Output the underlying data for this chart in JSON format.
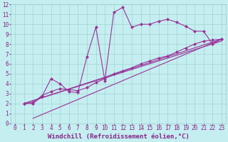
{
  "background_color": "#c5eef0",
  "grid_color": "#99cccc",
  "line_color": "#993399",
  "xlim": [
    -0.5,
    23.5
  ],
  "ylim": [
    0,
    12
  ],
  "xticks": [
    0,
    1,
    2,
    3,
    4,
    5,
    6,
    7,
    8,
    9,
    10,
    11,
    12,
    13,
    14,
    15,
    16,
    17,
    18,
    19,
    20,
    21,
    22,
    23
  ],
  "yticks": [
    0,
    1,
    2,
    3,
    4,
    5,
    6,
    7,
    8,
    9,
    10,
    11,
    12
  ],
  "line1_x": [
    1,
    2,
    3,
    4,
    5,
    6,
    7,
    8,
    9,
    10,
    11,
    12,
    13,
    14,
    15,
    16,
    17,
    18,
    19,
    20,
    21,
    22,
    23
  ],
  "line1_y": [
    2.0,
    2.0,
    2.7,
    4.5,
    4.0,
    3.2,
    3.1,
    6.7,
    9.7,
    4.3,
    11.2,
    11.7,
    9.7,
    10.0,
    10.0,
    10.3,
    10.5,
    10.2,
    9.8,
    9.3,
    9.3,
    8.0,
    8.5
  ],
  "line2_x": [
    1,
    2,
    3,
    4,
    5,
    6,
    7,
    8,
    9,
    10,
    11,
    12,
    13,
    14,
    15,
    16,
    17,
    18,
    19,
    20,
    21,
    22,
    23
  ],
  "line2_y": [
    2.0,
    2.1,
    2.8,
    3.2,
    3.5,
    3.4,
    3.3,
    3.6,
    4.1,
    4.5,
    5.0,
    5.3,
    5.6,
    6.0,
    6.3,
    6.6,
    6.8,
    7.2,
    7.6,
    8.0,
    8.3,
    8.4,
    8.5
  ],
  "line3_x": [
    1,
    23
  ],
  "line3_y": [
    2.0,
    8.5
  ],
  "line4_x": [
    1,
    23
  ],
  "line4_y": [
    2.0,
    8.3
  ],
  "line5_x": [
    2,
    23
  ],
  "line5_y": [
    0.5,
    8.5
  ],
  "xlabel": "Windchill (Refroidissement éolien,°C)",
  "xlabel_fontsize": 6.5,
  "tick_fontsize": 5.5,
  "tick_color": "#882288",
  "markersize": 2.5,
  "linewidth": 0.8
}
